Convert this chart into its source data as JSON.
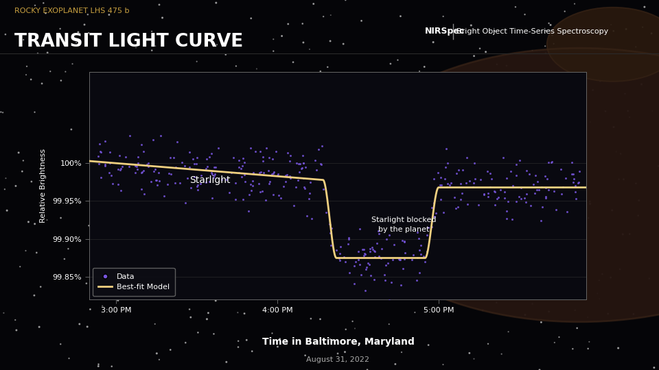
{
  "title_sub": "ROCKY EXOPLANET LHS 475 b",
  "title_main": "TRANSIT LIGHT CURVE",
  "nirspec_label": "NIRSpec",
  "nirspec_sep": "|",
  "nirspec_desc": "Bright Object Time-Series Spectroscopy",
  "xlabel_main": "Time in Baltimore, Maryland",
  "xlabel_sub": "August 31, 2022",
  "ylabel": "Relative Brightness",
  "xtick_labels": [
    "3:00 PM",
    "4:00 PM",
    "5:00 PM"
  ],
  "xtick_positions": [
    0.0,
    60.0,
    120.0
  ],
  "ytick_labels": [
    "99.85%",
    "99.90%",
    "99.95%",
    "100%"
  ],
  "ytick_positions": [
    99.85,
    99.9,
    99.95,
    100.0
  ],
  "ylim": [
    99.82,
    100.12
  ],
  "xlim": [
    -10,
    175
  ],
  "annotation_starlight": "Starlight",
  "annotation_blocked": "Starlight blocked\nby the planet",
  "legend_data": "Data",
  "legend_model": "Best-fit Model",
  "bg_color": "#050508",
  "plot_bg_color": "#090910",
  "model_color": "#f0d080",
  "data_color": "#7755dd",
  "text_color": "#ffffff",
  "title_sub_color": "#c8a040",
  "transit_start": 77.0,
  "transit_end": 120.0,
  "transit_depth": 99.875,
  "pre_transit_slope_start": 100.0,
  "pre_transit_slope_end": 99.978,
  "post_transit_level": 99.968
}
